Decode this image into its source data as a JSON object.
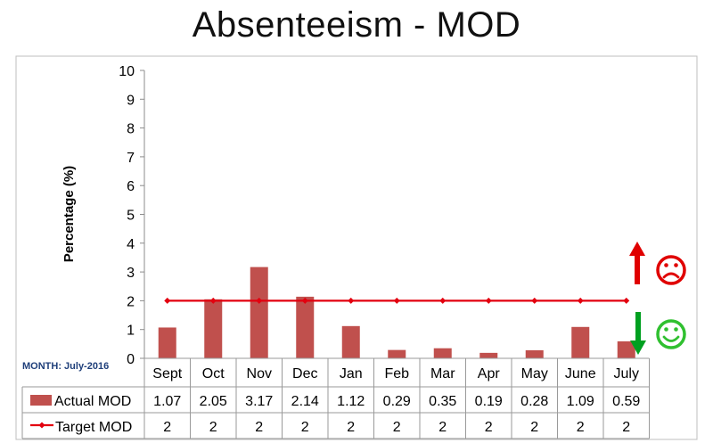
{
  "month_label": "MONTH: July-2016",
  "icons": {
    "up_arrow_color": "#e00000",
    "sad_face_color": "#e00000",
    "down_arrow_color": "#00a020",
    "happy_face_color": "#30c030"
  },
  "chart_data": {
    "type": "bar",
    "title": "Absenteeism - MOD",
    "xlabel": "",
    "ylabel": "Percentage (%)",
    "ylim": [
      0,
      10
    ],
    "yticks": [
      "0",
      "1",
      "2",
      "3",
      "4",
      "5",
      "6",
      "7",
      "8",
      "9",
      "10"
    ],
    "categories": [
      "Sept",
      "Oct",
      "Nov",
      "Dec",
      "Jan",
      "Feb",
      "Mar",
      "Apr",
      "May",
      "June",
      "July"
    ],
    "grid": false,
    "legend": "data-table",
    "series": [
      {
        "name": "Actual MOD",
        "type": "bar",
        "color": "#c0504d",
        "values": [
          1.07,
          2.05,
          3.17,
          2.14,
          1.12,
          0.29,
          0.35,
          0.19,
          0.28,
          1.09,
          0.59
        ],
        "labels": [
          "1.07",
          "2.05",
          "3.17",
          "2.14",
          "1.12",
          "0.29",
          "0.35",
          "0.19",
          "0.28",
          "1.09",
          "0.59"
        ]
      },
      {
        "name": "Target MOD",
        "type": "line",
        "color": "#e3000f",
        "values": [
          2,
          2,
          2,
          2,
          2,
          2,
          2,
          2,
          2,
          2,
          2
        ],
        "labels": [
          "2",
          "2",
          "2",
          "2",
          "2",
          "2",
          "2",
          "2",
          "2",
          "2",
          "2"
        ]
      }
    ]
  }
}
